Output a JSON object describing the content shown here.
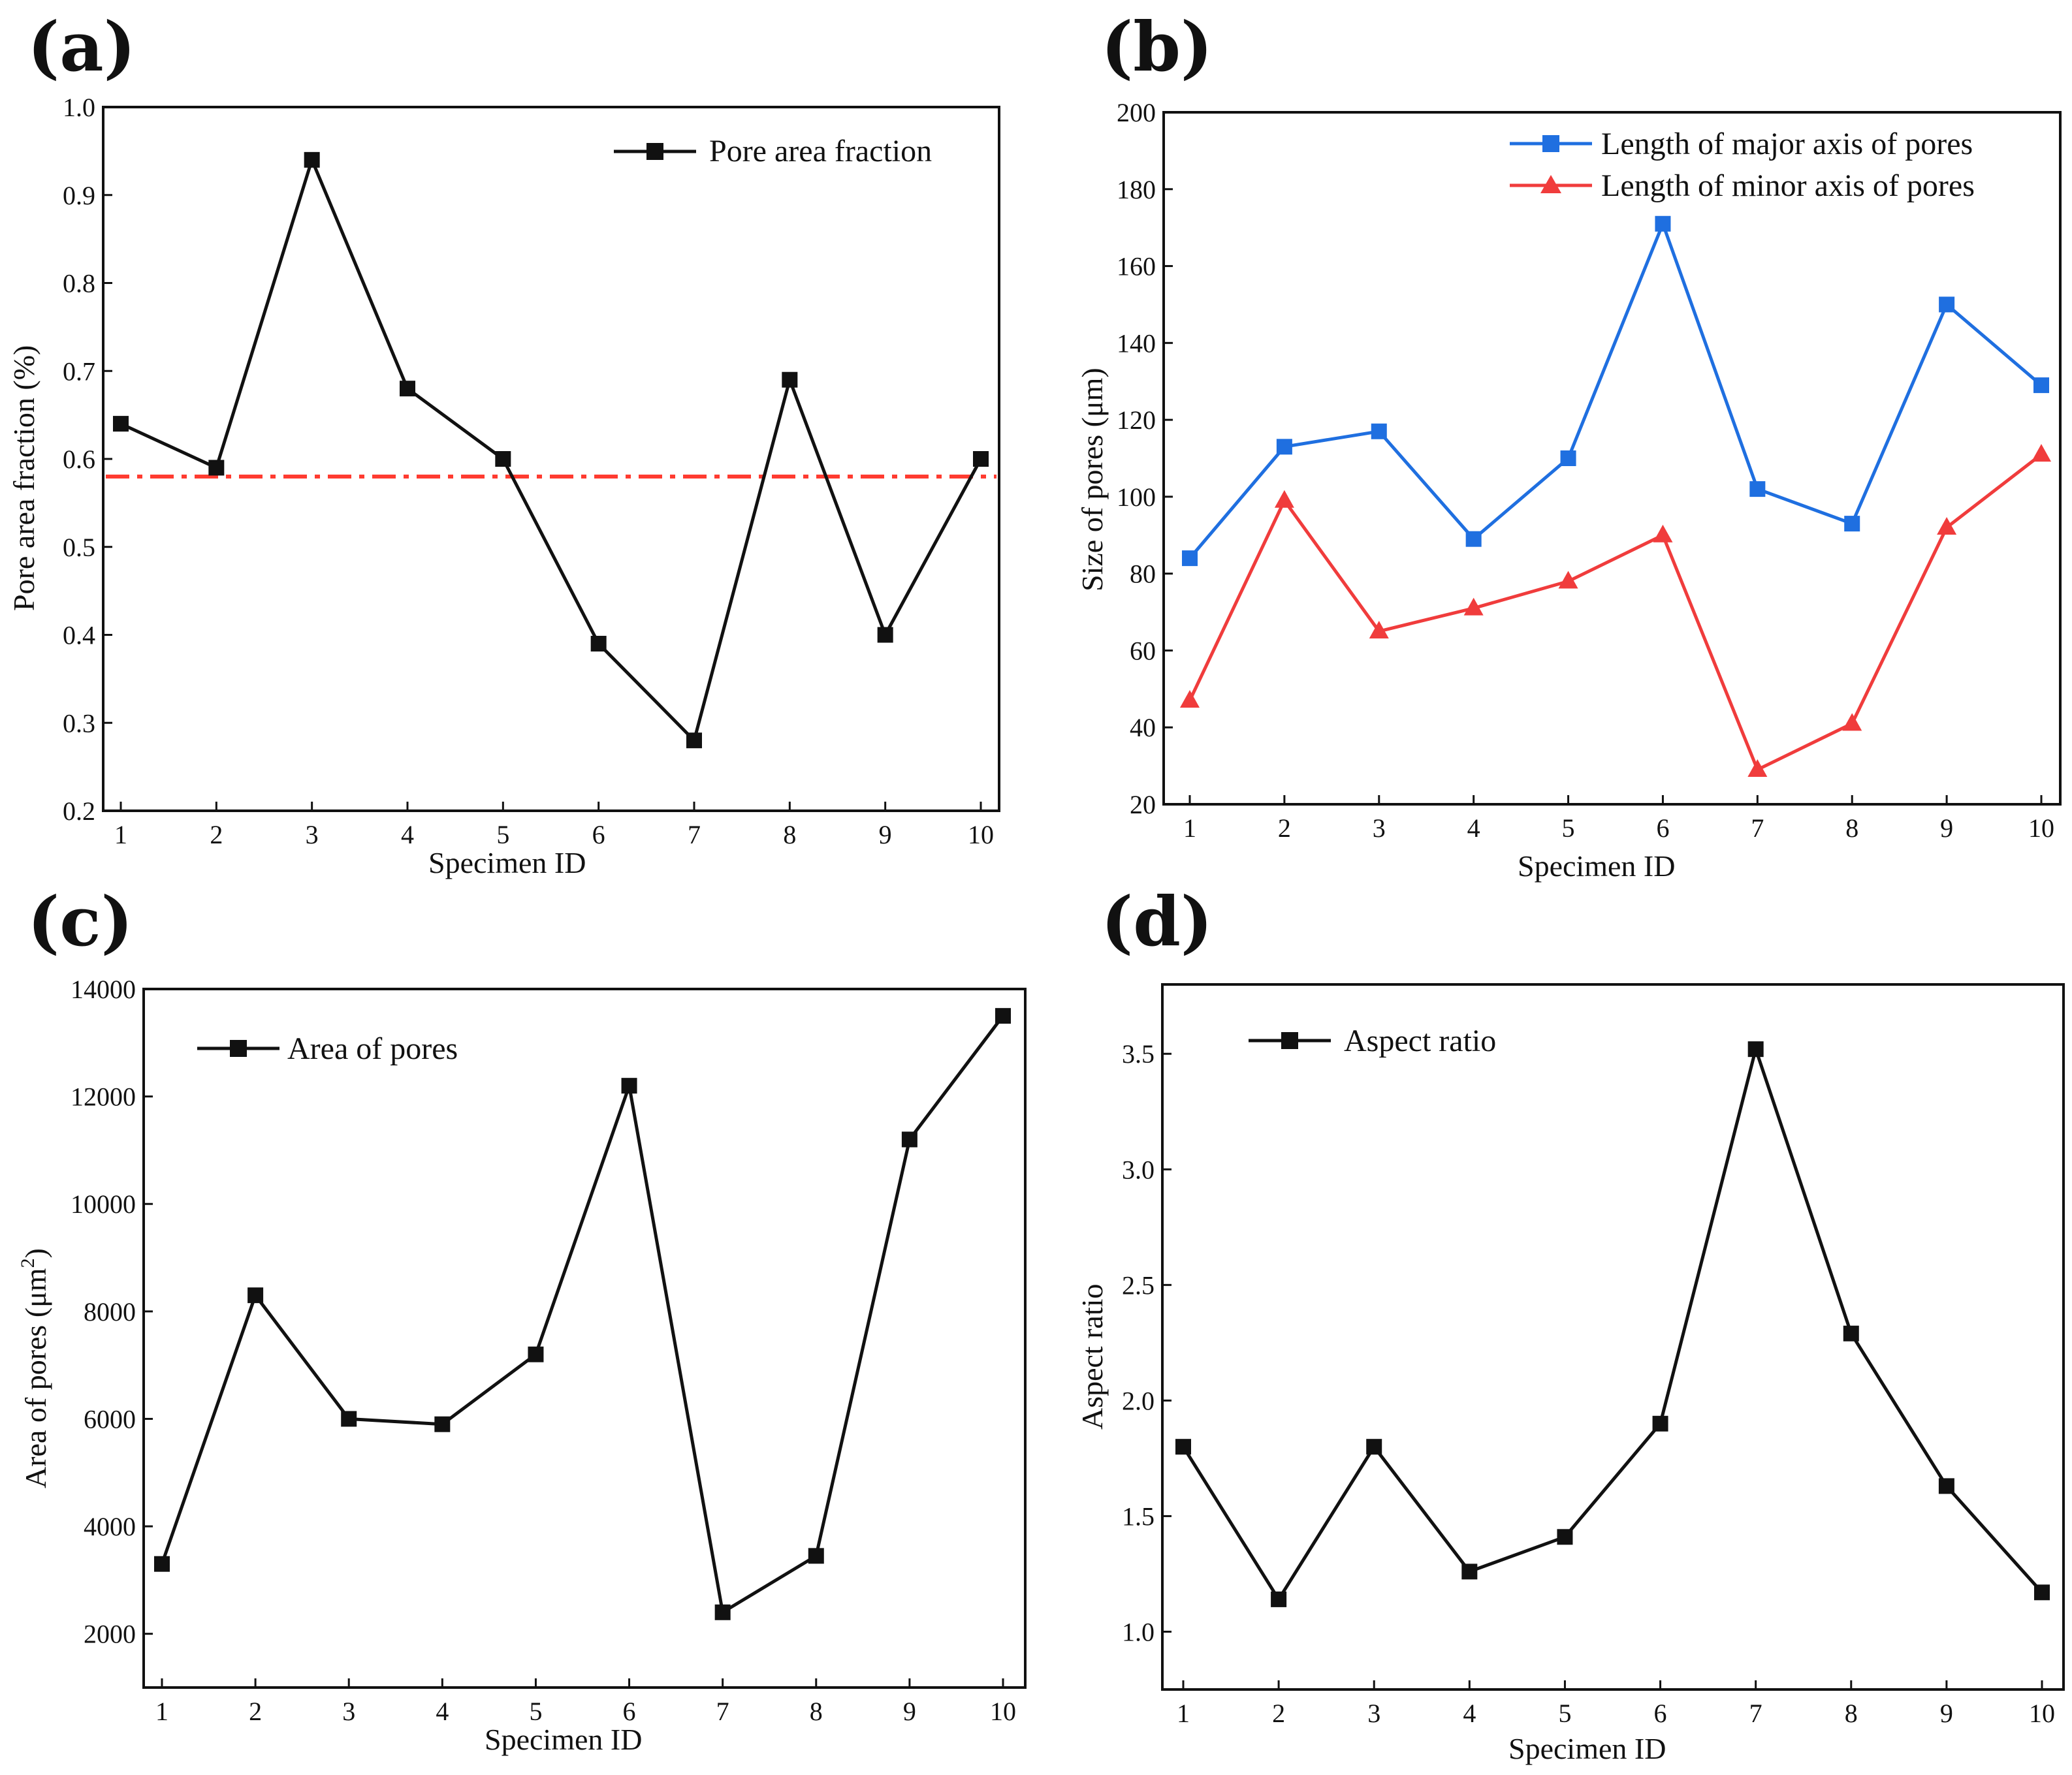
{
  "chart_data": [
    {
      "panel": "(a)",
      "type": "line",
      "categories": [
        "1",
        "2",
        "3",
        "4",
        "5",
        "6",
        "7",
        "8",
        "9",
        "10"
      ],
      "xlabel": "Specimen ID",
      "ylabel": "Pore area fraction (%)",
      "ylim": [
        0.2,
        1.0
      ],
      "yticks": [
        "0.2",
        "0.3",
        "0.4",
        "0.5",
        "0.6",
        "0.7",
        "0.8",
        "0.9",
        "1.0"
      ],
      "ytick_values": [
        0.2,
        0.3,
        0.4,
        0.5,
        0.6,
        0.7,
        0.8,
        0.9,
        1.0
      ],
      "legend_position": "top-right",
      "series": [
        {
          "name": "Pore area fraction",
          "color": "#111111",
          "marker": "square",
          "values": [
            0.64,
            0.59,
            0.94,
            0.68,
            0.6,
            0.39,
            0.28,
            0.69,
            0.4,
            0.6
          ]
        }
      ],
      "reference_line": {
        "value": 0.58,
        "color": "#ff3b30",
        "style": "dash-dot"
      }
    },
    {
      "panel": "(b)",
      "type": "line",
      "categories": [
        "1",
        "2",
        "3",
        "4",
        "5",
        "6",
        "7",
        "8",
        "9",
        "10"
      ],
      "xlabel": "Specimen ID",
      "ylabel": "Size of pores (μm)",
      "ylim": [
        20,
        200
      ],
      "yticks": [
        "20",
        "40",
        "60",
        "80",
        "100",
        "120",
        "140",
        "160",
        "180",
        "200"
      ],
      "ytick_values": [
        20,
        40,
        60,
        80,
        100,
        120,
        140,
        160,
        180,
        200
      ],
      "legend_position": "top-right",
      "series": [
        {
          "name": "Length of major axis of pores",
          "color": "#1f6fe0",
          "marker": "square",
          "values": [
            84,
            113,
            117,
            89,
            110,
            171,
            102,
            93,
            150,
            129
          ]
        },
        {
          "name": "Length of minor axis of pores",
          "color": "#f03c3c",
          "marker": "triangle",
          "values": [
            47,
            99,
            65,
            71,
            78,
            90,
            29,
            41,
            92,
            111
          ]
        }
      ]
    },
    {
      "panel": "(c)",
      "type": "line",
      "categories": [
        "1",
        "2",
        "3",
        "4",
        "5",
        "6",
        "7",
        "8",
        "9",
        "10"
      ],
      "xlabel": "Specimen ID",
      "ylabel": "Area of pores (μm",
      "ylabel_sup": "2",
      "ylabel_tail": ")",
      "ylim": [
        1000,
        14000
      ],
      "yticks": [
        "2000",
        "4000",
        "6000",
        "8000",
        "10000",
        "12000",
        "14000"
      ],
      "ytick_values": [
        2000,
        4000,
        6000,
        8000,
        10000,
        12000,
        14000
      ],
      "legend_position": "top-left",
      "series": [
        {
          "name": "Area of pores",
          "color": "#111111",
          "marker": "square",
          "values": [
            3300,
            8300,
            6000,
            5900,
            7200,
            12200,
            2400,
            3450,
            11200,
            13500
          ]
        }
      ]
    },
    {
      "panel": "(d)",
      "type": "line",
      "categories": [
        "1",
        "2",
        "3",
        "4",
        "5",
        "6",
        "7",
        "8",
        "9",
        "10"
      ],
      "xlabel": "Specimen ID",
      "ylabel": "Aspect ratio",
      "ylim": [
        0.75,
        3.8
      ],
      "yticks": [
        "1.0",
        "1.5",
        "2.0",
        "2.5",
        "3.0",
        "3.5"
      ],
      "ytick_values": [
        1.0,
        1.5,
        2.0,
        2.5,
        3.0,
        3.5
      ],
      "legend_position": "top-left",
      "series": [
        {
          "name": "Aspect ratio",
          "color": "#111111",
          "marker": "square",
          "values": [
            1.8,
            1.14,
            1.8,
            1.26,
            1.41,
            1.9,
            3.52,
            2.29,
            1.63,
            1.17
          ]
        }
      ]
    }
  ]
}
